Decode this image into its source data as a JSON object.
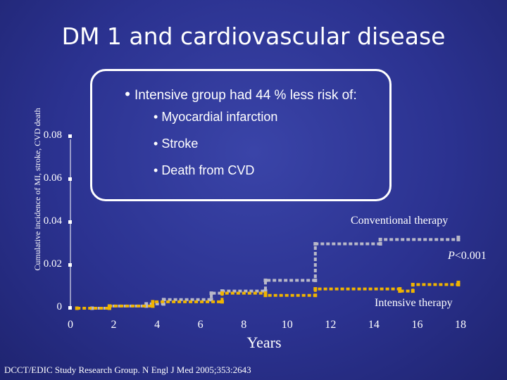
{
  "slide": {
    "title": "DM 1 and cardiovascular disease",
    "callout": {
      "heading": "Intensive group had 44 % less risk of:",
      "items": [
        "Myocardial infarction",
        "Stroke",
        "Death from CVD"
      ]
    },
    "citation": "DCCT/EDIC Study Research Group. N Engl J Med 2005;353:2643"
  },
  "chart_data": {
    "type": "line",
    "ylabel": "Cumulative incidence of MI, stroke, CVD death",
    "xlabel": "Years",
    "x_ticks": [
      "0",
      "2",
      "4",
      "6",
      "8",
      "10",
      "12",
      "14",
      "16",
      "18"
    ],
    "y_ticks": [
      "0",
      "0.02",
      "0.04",
      "0.06",
      "0.08"
    ],
    "xlim": [
      0,
      18
    ],
    "ylim": [
      0,
      0.08
    ],
    "annotations": {
      "conventional": "Conventional therapy",
      "pvalue": "<0.001",
      "pvalue_prefix": "P",
      "intensive": "Intensive therapy"
    },
    "series": [
      {
        "name": "Conventional therapy",
        "color": "#b8b8c8",
        "style": "step",
        "points": [
          [
            1,
            0
          ],
          [
            1.8,
            0
          ],
          [
            1.8,
            0.001
          ],
          [
            3.5,
            0.001
          ],
          [
            3.5,
            0.002
          ],
          [
            4.3,
            0.002
          ],
          [
            4.3,
            0.004
          ],
          [
            6.5,
            0.004
          ],
          [
            6.5,
            0.007
          ],
          [
            7,
            0.007
          ],
          [
            7,
            0.008
          ],
          [
            9,
            0.008
          ],
          [
            9,
            0.013
          ],
          [
            11.3,
            0.013
          ],
          [
            11.3,
            0.03
          ],
          [
            14.3,
            0.03
          ],
          [
            14.3,
            0.032
          ],
          [
            17.9,
            0.032
          ],
          [
            17.9,
            0.033
          ]
        ]
      },
      {
        "name": "Intensive therapy",
        "color": "#f0b400",
        "style": "step",
        "points": [
          [
            0.3,
            0
          ],
          [
            1.8,
            0
          ],
          [
            1.8,
            0.001
          ],
          [
            3.8,
            0.001
          ],
          [
            3.8,
            0.003
          ],
          [
            7,
            0.003
          ],
          [
            7,
            0.007
          ],
          [
            9,
            0.007
          ],
          [
            9,
            0.006
          ],
          [
            11.3,
            0.006
          ],
          [
            11.3,
            0.009
          ],
          [
            15.2,
            0.009
          ],
          [
            15.2,
            0.008
          ],
          [
            15.8,
            0.008
          ],
          [
            15.8,
            0.011
          ],
          [
            17.9,
            0.011
          ],
          [
            17.9,
            0.012
          ]
        ]
      }
    ]
  }
}
